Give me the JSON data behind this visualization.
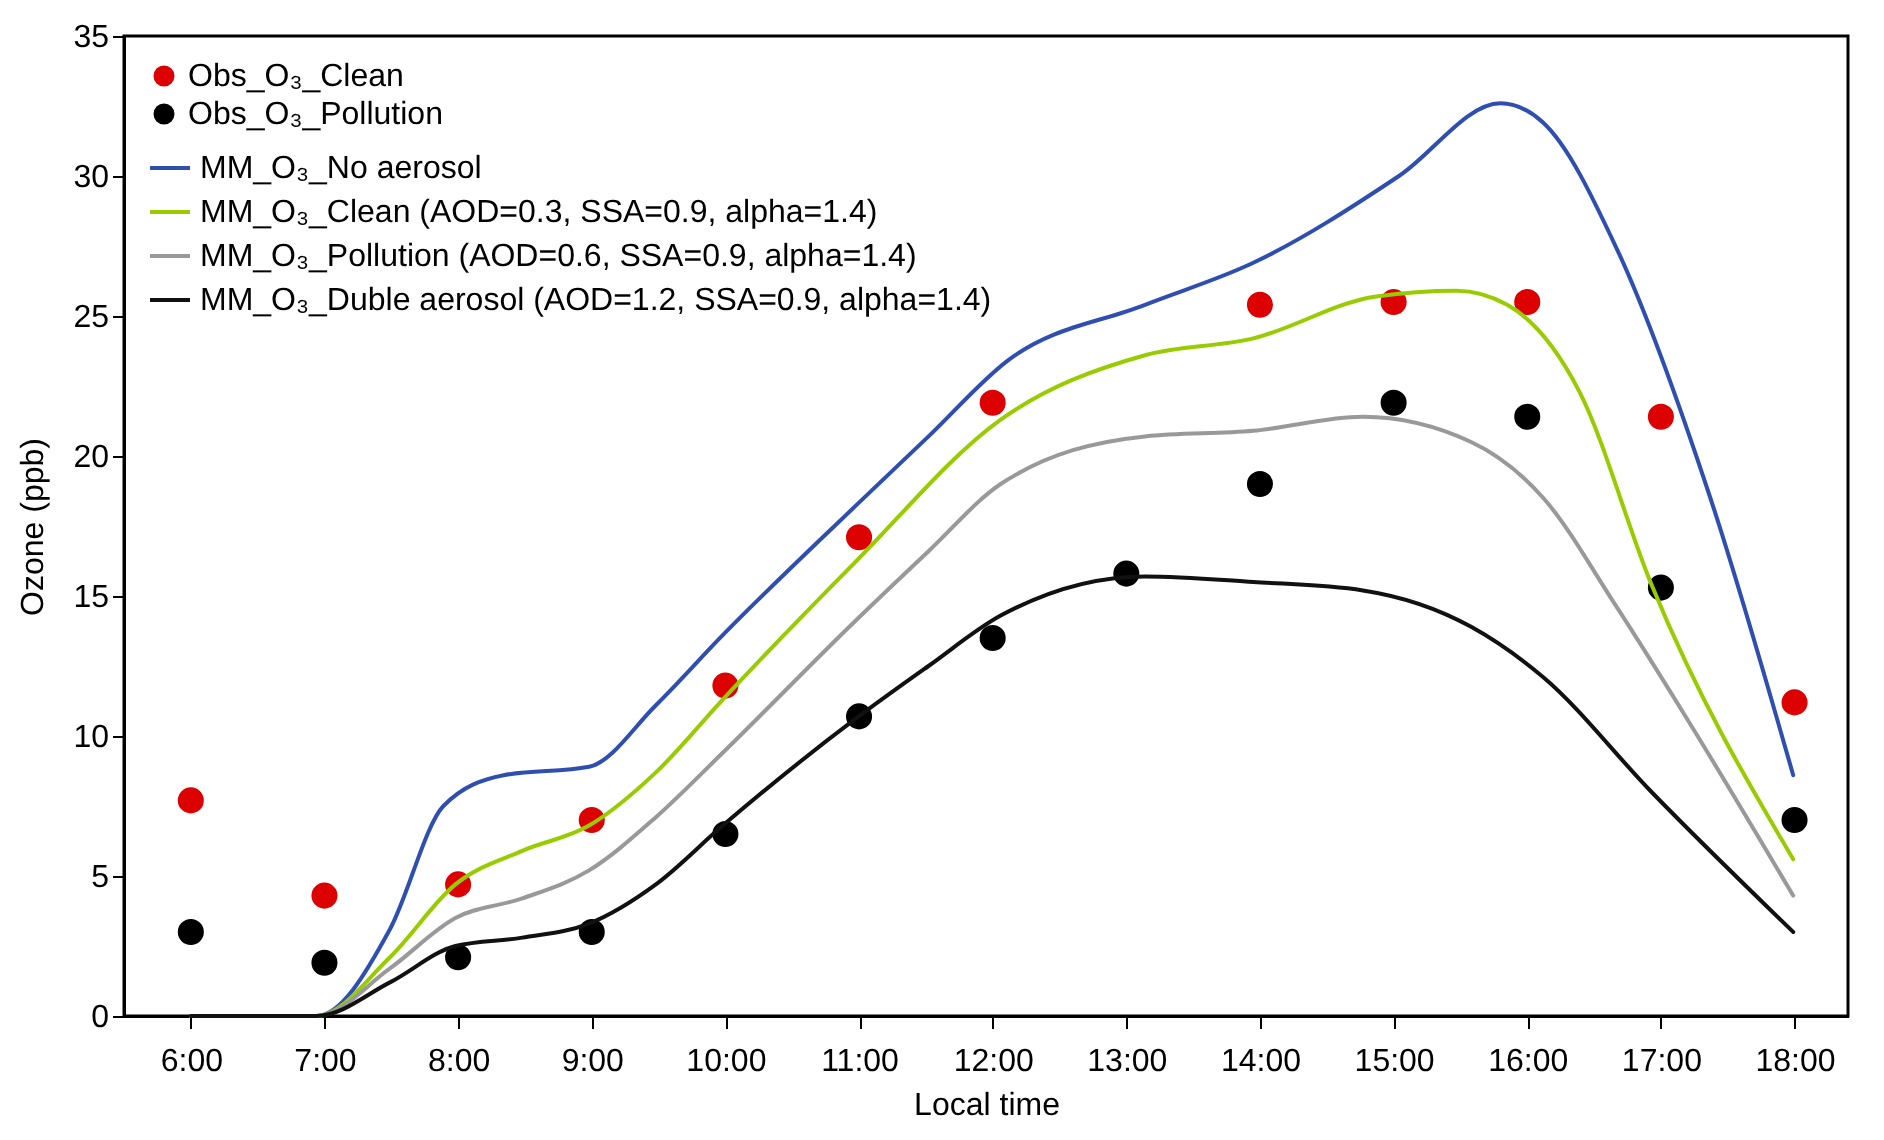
{
  "chart_data": {
    "type": "line",
    "xlabel": "Local time",
    "ylabel": "Ozone (ppb)",
    "xlim": [
      5.5,
      18.4
    ],
    "ylim": [
      0,
      35
    ],
    "xticks": [
      {
        "value": 6,
        "label": "6:00"
      },
      {
        "value": 7,
        "label": "7:00"
      },
      {
        "value": 8,
        "label": "8:00"
      },
      {
        "value": 9,
        "label": "9:00"
      },
      {
        "value": 10,
        "label": "10:00"
      },
      {
        "value": 11,
        "label": "11:00"
      },
      {
        "value": 12,
        "label": "12:00"
      },
      {
        "value": 13,
        "label": "13:00"
      },
      {
        "value": 14,
        "label": "14:00"
      },
      {
        "value": 15,
        "label": "15:00"
      },
      {
        "value": 16,
        "label": "16:00"
      },
      {
        "value": 17,
        "label": "17:00"
      },
      {
        "value": 18,
        "label": "18:00"
      }
    ],
    "yticks": [
      0,
      5,
      10,
      15,
      20,
      25,
      30,
      35
    ],
    "grid": false,
    "legend": "top left",
    "series": [
      {
        "name": "Obs_O₃_Clean",
        "type": "scatter",
        "marker": "circle",
        "color": "#dd0000",
        "x": [
          6,
          7,
          8,
          9,
          10,
          11,
          12,
          14,
          15,
          16,
          17,
          18
        ],
        "values": [
          7.7,
          4.3,
          4.7,
          7.0,
          11.8,
          17.1,
          21.9,
          25.4,
          25.5,
          25.5,
          21.4,
          11.2
        ]
      },
      {
        "name": "Obs_O₃_Pollution",
        "type": "scatter",
        "marker": "circle",
        "color": "#000000",
        "x": [
          6,
          7,
          8,
          9,
          10,
          11,
          12,
          13,
          14,
          15,
          16,
          17,
          18
        ],
        "values": [
          3.0,
          1.9,
          2.1,
          3.0,
          6.5,
          10.7,
          13.5,
          15.8,
          19.0,
          21.9,
          21.4,
          15.3,
          7.0
        ]
      },
      {
        "name": "MM_O₃_No aerosol",
        "color": "#2f4fb0",
        "x": [
          6,
          6.94,
          7.49,
          7.89,
          8.34,
          8.98,
          9.48,
          9.98,
          10.97,
          11.52,
          12.11,
          13.14,
          13.95,
          15.04,
          15.8,
          16.12,
          16.67,
          17.37,
          17.99
        ],
        "values": [
          0,
          0,
          3.1,
          7.5,
          8.6,
          8.9,
          11.1,
          13.6,
          18.2,
          20.7,
          23.4,
          25.4,
          26.9,
          30.0,
          32.6,
          31.9,
          27.4,
          18.5,
          8.6
        ]
      },
      {
        "name": "MM_O₃_Clean (AOD=0.3, SSA=0.9, alpha=1.4)",
        "color": "#99cc00",
        "x": [
          6,
          6.94,
          7.49,
          7.98,
          8.48,
          8.98,
          9.48,
          9.98,
          10.97,
          12.06,
          13.14,
          13.95,
          14.87,
          15.47,
          15.85,
          16.39,
          16.93,
          17.99
        ],
        "values": [
          0,
          0,
          2.1,
          4.7,
          5.9,
          6.8,
          8.7,
          11.3,
          16.2,
          21.3,
          23.6,
          24.2,
          25.7,
          25.9,
          25.4,
          22.3,
          15.4,
          5.6
        ]
      },
      {
        "name": "MM_O₃_Pollution (AOD=0.6, SSA=0.9, alpha=1.4)",
        "color": "#999999",
        "x": [
          6,
          6.94,
          7.49,
          7.98,
          8.48,
          8.98,
          9.48,
          9.98,
          10.97,
          11.52,
          12.06,
          13.14,
          13.95,
          14.77,
          15.58,
          16.12,
          16.67,
          17.21,
          17.99
        ],
        "values": [
          0,
          0,
          1.7,
          3.5,
          4.2,
          5.2,
          7.1,
          9.4,
          14.1,
          16.6,
          19.0,
          20.7,
          20.9,
          21.4,
          20.5,
          18.5,
          14.6,
          10.5,
          4.3
        ]
      },
      {
        "name": "MM_O₃_Duble aerosol (AOD=1.2, SSA=0.9, alpha=1.4)",
        "color": "#111111",
        "x": [
          6,
          6.94,
          7.49,
          7.98,
          8.48,
          8.98,
          9.48,
          9.98,
          10.97,
          11.52,
          12.06,
          13.14,
          13.95,
          14.77,
          15.58,
          16.12,
          16.93,
          17.99
        ],
        "values": [
          0,
          0,
          1.2,
          2.5,
          2.8,
          3.3,
          4.7,
          6.8,
          10.6,
          12.5,
          14.3,
          15.7,
          15.5,
          15.2,
          13.9,
          12.1,
          8.0,
          3.0
        ]
      }
    ]
  }
}
